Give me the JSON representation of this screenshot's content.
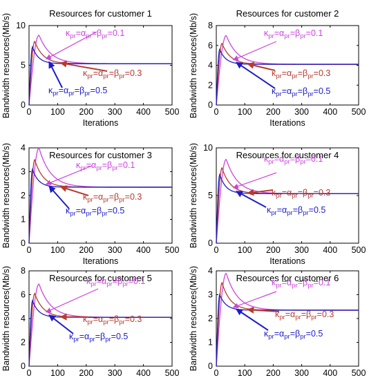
{
  "figure": {
    "ylabel": "Bandwidth resources(Mb/s)",
    "xlabel": "Iterations"
  },
  "legend_labels": {
    "k01": "κpr=αpr=βpr=0.1",
    "k03": "κpr=αpr=βpr=0.3",
    "k05": "κpr=αpr=βpr=0.5"
  },
  "colors": {
    "k01": "#cc44dd",
    "k03": "#b83a2e",
    "k05": "#1c1cc8"
  },
  "chart_data": [
    {
      "type": "line",
      "title": "Resources for customer 1",
      "xlabel": "Iterations",
      "ylabel": "Bandwidth resources(Mb/s)",
      "xlim": [
        0,
        500
      ],
      "ylim": [
        0,
        10
      ],
      "xticks": [
        0,
        100,
        200,
        300,
        400,
        500
      ],
      "yticks": [
        0,
        5,
        10
      ],
      "steady_state": 5.2,
      "series": [
        {
          "name": "κpr=αpr=βpr=0.1",
          "peak_x": 35,
          "peak_y": 8.8
        },
        {
          "name": "κpr=αpr=βpr=0.3",
          "peak_x": 20,
          "peak_y": 8.0
        },
        {
          "name": "κpr=αpr=βpr=0.5",
          "peak_x": 12,
          "peak_y": 7.3
        }
      ]
    },
    {
      "type": "line",
      "title": "Resources for customer 2",
      "xlabel": "Iterations",
      "ylabel": "Bandwidth resources(Mb/s)",
      "xlim": [
        0,
        500
      ],
      "ylim": [
        0,
        8
      ],
      "xticks": [
        0,
        100,
        200,
        300,
        400,
        500
      ],
      "yticks": [
        0,
        2,
        4,
        6,
        8
      ],
      "steady_state": 4.1,
      "series": [
        {
          "name": "κpr=αpr=βpr=0.1",
          "peak_x": 35,
          "peak_y": 7.0
        },
        {
          "name": "κpr=αpr=βpr=0.3",
          "peak_x": 20,
          "peak_y": 6.2
        },
        {
          "name": "κpr=αpr=βpr=0.5",
          "peak_x": 12,
          "peak_y": 5.6
        }
      ]
    },
    {
      "type": "line",
      "title": "Resources for customer 3",
      "xlabel": "Iterations",
      "ylabel": "Bandwidth resources(Mb/s)",
      "xlim": [
        0,
        500
      ],
      "ylim": [
        0,
        4
      ],
      "xticks": [
        0,
        100,
        200,
        300,
        400,
        500
      ],
      "yticks": [
        0,
        1,
        2,
        3,
        4
      ],
      "steady_state": 2.35,
      "series": [
        {
          "name": "κpr=αpr=βpr=0.1",
          "peak_x": 35,
          "peak_y": 4.0
        },
        {
          "name": "κpr=αpr=βpr=0.3",
          "peak_x": 20,
          "peak_y": 3.5
        },
        {
          "name": "κpr=αpr=βpr=0.5",
          "peak_x": 12,
          "peak_y": 3.1
        }
      ]
    },
    {
      "type": "line",
      "title": "Resources for customer 4",
      "xlabel": "Iterations",
      "ylabel": "Bandwidth resources(Mb/s)",
      "xlim": [
        0,
        500
      ],
      "ylim": [
        0,
        10
      ],
      "xticks": [
        0,
        100,
        200,
        300,
        400,
        500
      ],
      "yticks": [
        0,
        5,
        10
      ],
      "steady_state": 5.2,
      "series": [
        {
          "name": "κpr=αpr=βpr=0.1",
          "peak_x": 35,
          "peak_y": 8.8
        },
        {
          "name": "κpr=αpr=βpr=0.3",
          "peak_x": 20,
          "peak_y": 7.9
        },
        {
          "name": "κpr=αpr=βpr=0.5",
          "peak_x": 12,
          "peak_y": 7.2
        }
      ]
    },
    {
      "type": "line",
      "title": "Resources for customer 5",
      "xlabel": "Iterations",
      "ylabel": "Bandwidth resources(Mb/s)",
      "xlim": [
        0,
        500
      ],
      "ylim": [
        0,
        8
      ],
      "xticks": [
        0,
        100,
        200,
        300,
        400,
        500
      ],
      "yticks": [
        0,
        2,
        4,
        6,
        8
      ],
      "steady_state": 4.1,
      "series": [
        {
          "name": "κpr=αpr=βpr=0.1",
          "peak_x": 35,
          "peak_y": 6.9
        },
        {
          "name": "κpr=αpr=βpr=0.3",
          "peak_x": 20,
          "peak_y": 6.1
        },
        {
          "name": "κpr=αpr=βpr=0.5",
          "peak_x": 12,
          "peak_y": 5.5
        }
      ]
    },
    {
      "type": "line",
      "title": "Resources for customer 6",
      "xlabel": "Iterations",
      "ylabel": "Bandwidth resources(Mb/s)",
      "xlim": [
        0,
        500
      ],
      "ylim": [
        0,
        4
      ],
      "xticks": [
        0,
        100,
        200,
        300,
        400,
        500
      ],
      "yticks": [
        0,
        1,
        2,
        3,
        4
      ],
      "steady_state": 2.35,
      "series": [
        {
          "name": "κpr=αpr=βpr=0.1",
          "peak_x": 35,
          "peak_y": 3.9
        },
        {
          "name": "κpr=αpr=βpr=0.3",
          "peak_x": 20,
          "peak_y": 3.5
        },
        {
          "name": "κpr=αpr=βpr=0.5",
          "peak_x": 12,
          "peak_y": 3.0
        }
      ]
    }
  ]
}
